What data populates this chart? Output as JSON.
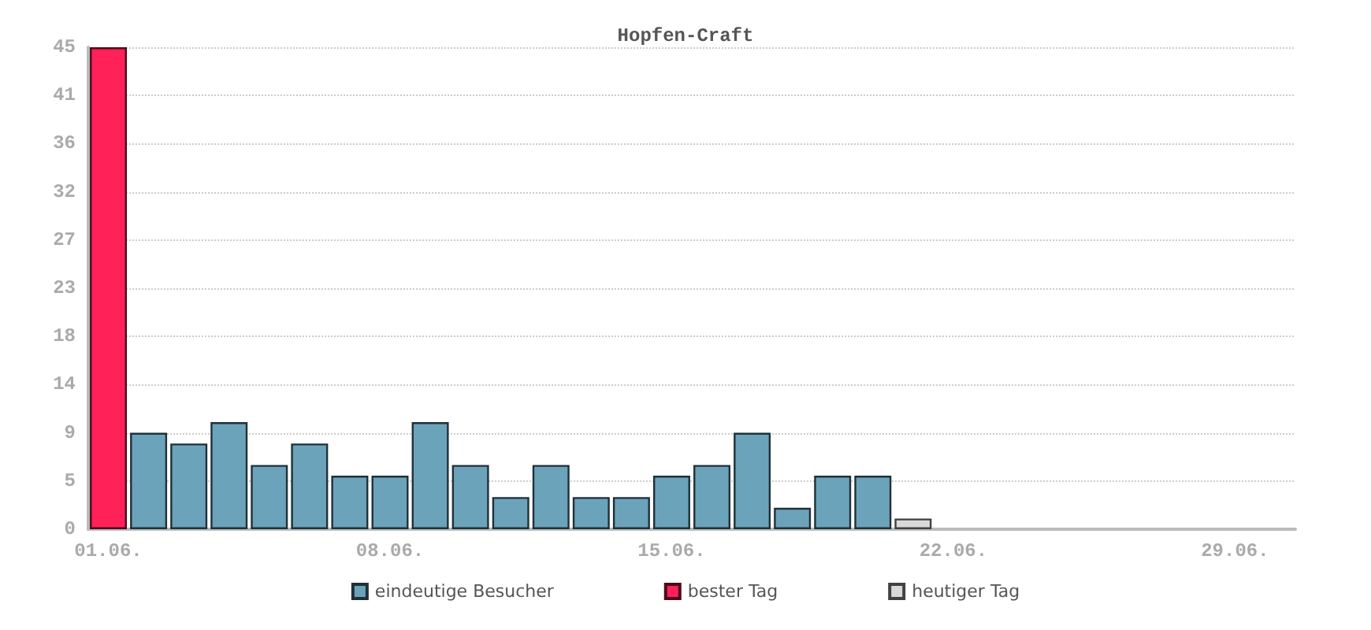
{
  "chart_data": {
    "type": "bar",
    "title": "Hopfen-Craft",
    "stacked": true,
    "categories": [
      "01.06.",
      null,
      null,
      null,
      null,
      null,
      null,
      "08.06.",
      null,
      null,
      null,
      null,
      null,
      null,
      "15.06.",
      null,
      null,
      null,
      null,
      null,
      null,
      "22.06.",
      null,
      null,
      null,
      null,
      null,
      null,
      "29.06.",
      null
    ],
    "series": [
      {
        "name": "eindeutige Besucher",
        "color": "#6ba3bb",
        "values": [
          null,
          9,
          8,
          10,
          6,
          8,
          5,
          5,
          10,
          6,
          3,
          6,
          3,
          3,
          5,
          6,
          9,
          2,
          5,
          5,
          null,
          null,
          null,
          null,
          null,
          null,
          null,
          null,
          null,
          null
        ]
      },
      {
        "name": "bester Tag",
        "color": "#ff2157",
        "values": [
          45,
          null,
          null,
          null,
          null,
          null,
          null,
          null,
          null,
          null,
          null,
          null,
          null,
          null,
          null,
          null,
          null,
          null,
          null,
          null,
          null,
          null,
          null,
          null,
          null,
          null,
          null,
          null,
          null,
          null
        ]
      },
      {
        "name": "heutiger Tag",
        "color": "#d9d9d9",
        "values": [
          null,
          null,
          null,
          null,
          null,
          null,
          null,
          null,
          null,
          null,
          null,
          null,
          null,
          null,
          null,
          null,
          null,
          null,
          null,
          null,
          1,
          null,
          null,
          null,
          null,
          null,
          null,
          null,
          null,
          null
        ]
      }
    ],
    "ylim": [
      0,
      45
    ],
    "yticks": [
      0,
      {
        "value": 4.5,
        "label": "5"
      },
      9,
      {
        "value": 13.5,
        "label": "14"
      },
      18,
      {
        "value": 22.5,
        "label": "23"
      },
      27,
      {
        "value": 31.5,
        "label": "32"
      },
      36,
      {
        "value": 40.5,
        "label": "41"
      },
      45
    ],
    "grid": "y",
    "legend": "bottom"
  }
}
